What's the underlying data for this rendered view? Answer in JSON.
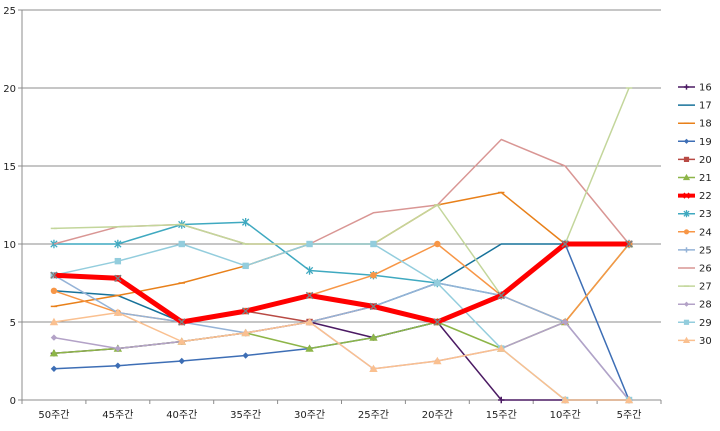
{
  "chart_data": {
    "type": "line",
    "title": "",
    "xlabel": "",
    "ylabel": "",
    "ylim": [
      0,
      25
    ],
    "yticks": [
      0,
      5,
      10,
      15,
      20,
      25
    ],
    "grid": "horizontal",
    "legend_position": "right",
    "categories": [
      "50주간",
      "45주간",
      "40주간",
      "35주간",
      "30주간",
      "25주간",
      "20주간",
      "15주간",
      "10주간",
      "5주간"
    ],
    "series": [
      {
        "name": "16",
        "color": "#4b1a63",
        "marker": "plus",
        "width": 1.5,
        "values": [
          3,
          3.3,
          3.75,
          4.3,
          5,
          4,
          5,
          0,
          0,
          0
        ]
      },
      {
        "name": "17",
        "color": "#17729a",
        "marker": "none",
        "width": 1.5,
        "values": [
          7,
          6.7,
          5,
          5.7,
          6.7,
          6,
          7.5,
          10,
          10,
          null
        ]
      },
      {
        "name": "18",
        "color": "#e8801a",
        "marker": "dash",
        "width": 1.5,
        "values": [
          6,
          6.7,
          7.5,
          8.6,
          10,
          10,
          12.5,
          13.3,
          10,
          10
        ]
      },
      {
        "name": "19",
        "color": "#3d6eb5",
        "marker": "diamond",
        "width": 1.5,
        "values": [
          2,
          2.2,
          2.5,
          2.85,
          3.3,
          4,
          5,
          6.7,
          10,
          0
        ]
      },
      {
        "name": "20",
        "color": "#b84a44",
        "marker": "square",
        "width": 1.5,
        "values": [
          8,
          7.8,
          5,
          5.7,
          5,
          6,
          5,
          6.7,
          10,
          10
        ]
      },
      {
        "name": "21",
        "color": "#8db548",
        "marker": "triangle",
        "width": 1.5,
        "values": [
          3,
          3.3,
          3.75,
          4.3,
          3.3,
          4,
          5,
          3.3,
          5,
          10
        ]
      },
      {
        "name": "22",
        "color": "#ff0000",
        "marker": "x",
        "width": 5,
        "values": [
          8,
          7.8,
          5,
          5.7,
          6.7,
          6,
          5,
          6.7,
          10,
          10
        ]
      },
      {
        "name": "23",
        "color": "#3fa9c0",
        "marker": "star",
        "width": 1.5,
        "values": [
          10,
          10,
          11.25,
          11.4,
          8.3,
          8,
          7.5,
          6.7,
          10,
          10
        ]
      },
      {
        "name": "24",
        "color": "#f79646",
        "marker": "circle",
        "width": 1.5,
        "values": [
          7,
          5.6,
          5,
          5.7,
          6.7,
          8,
          10,
          6.7,
          5,
          10
        ]
      },
      {
        "name": "25",
        "color": "#95b3d7",
        "marker": "plus",
        "width": 1.5,
        "values": [
          8,
          5.6,
          5,
          4.3,
          5,
          6,
          7.5,
          6.7,
          5,
          0
        ]
      },
      {
        "name": "26",
        "color": "#d99694",
        "marker": "none",
        "width": 1.5,
        "values": [
          10,
          11.1,
          11.25,
          10,
          10,
          12,
          12.5,
          16.7,
          15,
          10
        ]
      },
      {
        "name": "27",
        "color": "#c3d69b",
        "marker": "dash",
        "width": 1.5,
        "values": [
          11,
          11.1,
          11.25,
          10,
          10,
          10,
          12.5,
          6.7,
          10,
          20
        ]
      },
      {
        "name": "28",
        "color": "#b3a2c7",
        "marker": "diamond",
        "width": 1.5,
        "values": [
          4,
          3.3,
          3.75,
          4.3,
          5,
          2,
          2.5,
          3.3,
          5,
          0
        ]
      },
      {
        "name": "29",
        "color": "#93cddd",
        "marker": "square",
        "width": 1.5,
        "values": [
          8,
          8.9,
          10,
          8.6,
          10,
          10,
          7.5,
          3.3,
          0,
          0
        ]
      },
      {
        "name": "30",
        "color": "#fac090",
        "marker": "triangle",
        "width": 1.5,
        "values": [
          5,
          5.6,
          3.75,
          4.3,
          5,
          2,
          2.5,
          3.3,
          0,
          0
        ]
      }
    ]
  }
}
